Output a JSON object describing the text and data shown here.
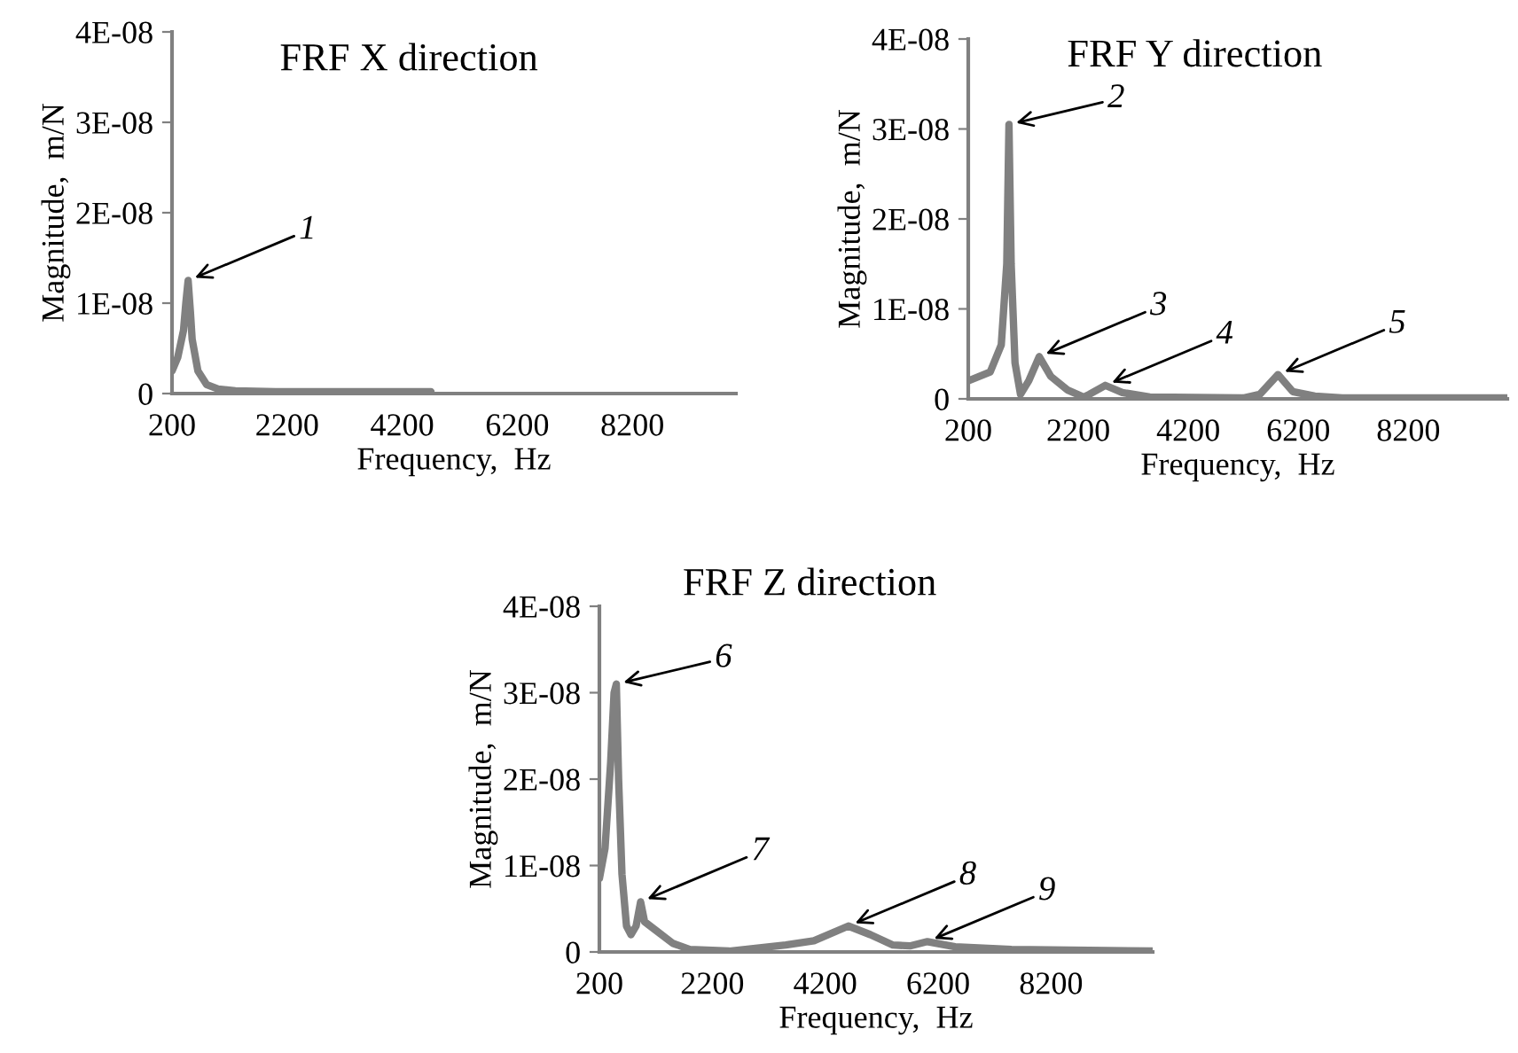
{
  "chart_data": [
    {
      "type": "line",
      "title": "FRF X direction",
      "xlabel": "Frequency,  Hz",
      "ylabel": "Magnitude,  m/N",
      "xlim": [
        200,
        10000
      ],
      "ylim": [
        0,
        4e-08
      ],
      "xticks": [
        200,
        2200,
        4200,
        6200,
        8200
      ],
      "yticks": [
        0,
        {
          "value": 1e-08,
          "label": "1E-08"
        },
        {
          "value": 2e-08,
          "label": "2E-08"
        },
        {
          "value": 3e-08,
          "label": "3E-08"
        },
        {
          "value": 4e-08,
          "label": "4E-08"
        }
      ],
      "grid": false,
      "legend": false,
      "series": [
        {
          "color": "#808080",
          "x": [
            200,
            300,
            400,
            440,
            480,
            520,
            550,
            650,
            800,
            1000,
            1300,
            2000,
            4700
          ],
          "values": [
            2.5e-09,
            4e-09,
            7e-09,
            1e-08,
            1.25e-08,
            9e-09,
            6e-09,
            2.5e-09,
            1e-09,
            5e-10,
            3e-10,
            2e-10,
            2e-10
          ]
        }
      ],
      "annotations": [
        {
          "text": "1",
          "x": 480,
          "y": 1.25e-08
        }
      ]
    },
    {
      "type": "line",
      "title": "FRF Y direction",
      "xlabel": "Frequency,  Hz",
      "ylabel": "Magnitude,  m/N",
      "xlim": [
        200,
        10000
      ],
      "ylim": [
        0,
        4e-08
      ],
      "xticks": [
        200,
        2200,
        4200,
        6200,
        8200
      ],
      "yticks": [
        0,
        {
          "value": 1e-08,
          "label": "1E-08"
        },
        {
          "value": 2e-08,
          "label": "2E-08"
        },
        {
          "value": 3e-08,
          "label": "3E-08"
        },
        {
          "value": 4e-08,
          "label": "4E-08"
        }
      ],
      "grid": false,
      "legend": false,
      "series": [
        {
          "color": "#808080",
          "x": [
            200,
            600,
            800,
            900,
            940,
            980,
            1050,
            1150,
            1300,
            1490,
            1700,
            2000,
            2300,
            2400,
            2690,
            3000,
            3500,
            5200,
            5500,
            5830,
            6100,
            6500,
            7000,
            10000
          ],
          "values": [
            2e-09,
            3e-09,
            6e-09,
            1.5e-08,
            3.05e-08,
            1.5e-08,
            4e-09,
            5e-10,
            2e-09,
            4.7e-09,
            2.5e-09,
            1e-09,
            2e-10,
            5e-10,
            1.5e-09,
            7e-10,
            2e-10,
            1e-10,
            5e-10,
            2.7e-09,
            8e-10,
            3e-10,
            1e-10,
            1e-10
          ]
        }
      ],
      "annotations": [
        {
          "text": "2",
          "x": 940,
          "y": 3.05e-08
        },
        {
          "text": "3",
          "x": 1490,
          "y": 4.7e-09
        },
        {
          "text": "4",
          "x": 2690,
          "y": 1.5e-09
        },
        {
          "text": "5",
          "x": 5830,
          "y": 2.7e-09
        }
      ]
    },
    {
      "type": "line",
      "title": "FRF Z direction",
      "xlabel": "Frequency,  Hz",
      "ylabel": "Magnitude,  m/N",
      "xlim": [
        200,
        10000
      ],
      "ylim": [
        0,
        4e-08
      ],
      "xticks": [
        200,
        2200,
        4200,
        6200,
        8200
      ],
      "yticks": [
        0,
        {
          "value": 1e-08,
          "label": "1E-08"
        },
        {
          "value": 2e-08,
          "label": "2E-08"
        },
        {
          "value": 3e-08,
          "label": "3E-08"
        },
        {
          "value": 4e-08,
          "label": "4E-08"
        }
      ],
      "grid": false,
      "legend": false,
      "series": [
        {
          "color": "#808080",
          "x": [
            200,
            300,
            400,
            460,
            500,
            540,
            600,
            680,
            760,
            850,
            930,
            1000,
            1200,
            1500,
            1800,
            2500,
            3500,
            4000,
            4610,
            5000,
            5400,
            5700,
            6010,
            6500,
            7500,
            10000
          ],
          "values": [
            8.5e-09,
            1.2e-08,
            2.2e-08,
            3e-08,
            3.1e-08,
            2e-08,
            9e-09,
            3e-09,
            2e-09,
            3e-09,
            5.8e-09,
            3.5e-09,
            2.5e-09,
            1e-09,
            3e-10,
            1e-10,
            8e-10,
            1.3e-09,
            3e-09,
            2e-09,
            8e-10,
            7e-10,
            1.2e-09,
            6e-10,
            3e-10,
            1e-10
          ]
        }
      ],
      "annotations": [
        {
          "text": "6",
          "x": 500,
          "y": 3.1e-08
        },
        {
          "text": "7",
          "x": 930,
          "y": 5.8e-09
        },
        {
          "text": "8",
          "x": 4610,
          "y": 3e-09
        },
        {
          "text": "9",
          "x": 6010,
          "y": 1.2e-09
        }
      ]
    }
  ]
}
